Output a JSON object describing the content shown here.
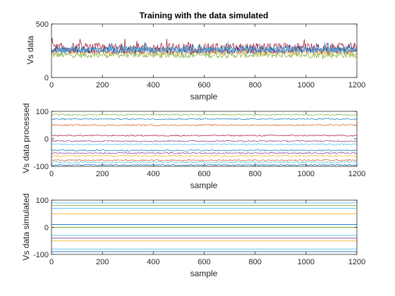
{
  "chart_data": [
    {
      "type": "line",
      "title": "Training with the data simulated",
      "xlabel": "sample",
      "ylabel": "Vs data",
      "xlim": [
        0,
        1200
      ],
      "ylim": [
        0,
        500
      ],
      "xticks": [
        0,
        200,
        400,
        600,
        800,
        1000,
        1200
      ],
      "yticks": [
        0,
        250,
        500
      ],
      "yticklabels": [
        "0",
        "",
        "500"
      ],
      "grid": false,
      "series": [
        {
          "color": "#77ac30",
          "values": [
            210
          ]
        },
        {
          "color": "#edb120",
          "values": [
            240
          ]
        },
        {
          "color": "#7e2f8e",
          "values": [
            250
          ]
        },
        {
          "color": "#a2142f",
          "values": [
            275
          ]
        },
        {
          "color": "#0072bd",
          "values": [
            265
          ]
        },
        {
          "color": "#4dbeee",
          "values": [
            255
          ]
        }
      ]
    },
    {
      "type": "line",
      "xlabel": "sample",
      "ylabel": "Vs data processed",
      "xlim": [
        0,
        1200
      ],
      "ylim": [
        -100,
        100
      ],
      "xticks": [
        0,
        200,
        400,
        600,
        800,
        1000,
        1200
      ],
      "yticks": [
        -100,
        0,
        100
      ],
      "grid": false,
      "series": [
        {
          "color": "#77ac30",
          "values": [
            88
          ]
        },
        {
          "color": "#0072bd",
          "values": [
            72
          ]
        },
        {
          "color": "#d95319",
          "values": [
            50
          ]
        },
        {
          "color": "#a2142f",
          "values": [
            12
          ]
        },
        {
          "color": "#7e2f8e",
          "values": [
            -8
          ]
        },
        {
          "color": "#4dbeee",
          "values": [
            -20
          ]
        },
        {
          "color": "#0072bd",
          "values": [
            -42
          ]
        },
        {
          "color": "#7e2f8e",
          "values": [
            -52
          ]
        },
        {
          "color": "#edb120",
          "values": [
            -62
          ]
        },
        {
          "color": "#d95319",
          "values": [
            -78
          ]
        },
        {
          "color": "#4dbeee",
          "values": [
            -85
          ]
        },
        {
          "color": "#0072bd",
          "values": [
            -95
          ]
        }
      ]
    },
    {
      "type": "line",
      "xlabel": "sample",
      "ylabel": "Vs data simulated",
      "xlim": [
        0,
        1200
      ],
      "ylim": [
        -100,
        100
      ],
      "xticks": [
        0,
        200,
        400,
        600,
        800,
        1000,
        1200
      ],
      "yticks": [
        -100,
        0,
        100
      ],
      "grid": false,
      "series": [
        {
          "color": "#4dbeee",
          "values": [
            90
          ]
        },
        {
          "color": "#77ac30",
          "values": [
            80
          ]
        },
        {
          "color": "#4dbeee",
          "values": [
            70
          ]
        },
        {
          "color": "#edb120",
          "values": [
            50
          ]
        },
        {
          "color": "#0072bd",
          "values": [
            10
          ]
        },
        {
          "color": "#77ac30",
          "values": [
            0
          ]
        },
        {
          "color": "#4dbeee",
          "values": [
            -30
          ]
        },
        {
          "color": "#7e2f8e",
          "values": [
            -40
          ]
        },
        {
          "color": "#edb120",
          "values": [
            -50
          ]
        },
        {
          "color": "#4dbeee",
          "values": [
            -80
          ]
        },
        {
          "color": "#0072bd",
          "values": [
            -90
          ]
        }
      ]
    }
  ]
}
